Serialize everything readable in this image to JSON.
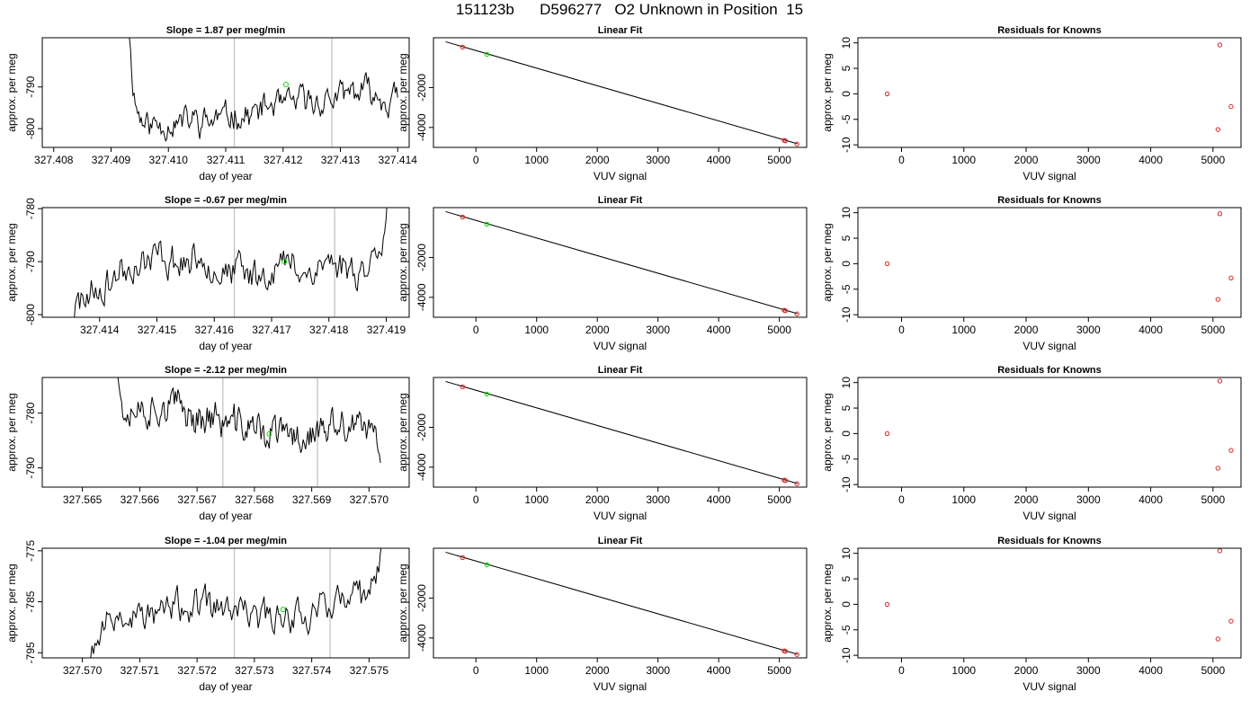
{
  "title": "151123b      D596277   O2 Unknown in Position  15",
  "colors": {
    "trace": "#000000",
    "known_point": "#d62728",
    "unknown_point": "#00e000",
    "marker_line": "#bfbfbf"
  },
  "chart_data": [
    {
      "type": "line",
      "title": "Slope =  1.87  per meg/min",
      "xlabel": "day of year",
      "ylabel": "approx. per meg",
      "xlim": [
        327.4078,
        327.4142
      ],
      "ylim": [
        -804.5,
        -778.2
      ],
      "xticks": [
        "327.408",
        "327.409",
        "327.410",
        "327.411",
        "327.412",
        "327.413",
        "327.414"
      ],
      "yticks": [
        -790,
        -800
      ],
      "markers": [
        327.41115,
        327.41285
      ],
      "unknown_point": {
        "x": 327.41205,
        "y": -789.4
      },
      "trace": {
        "x_start": 327.4093,
        "x_end": 327.414,
        "base": -795,
        "trend": 8,
        "rise_start": 0,
        "rise_end": 0,
        "seed": 11
      }
    },
    {
      "type": "scatter",
      "title": "Linear Fit",
      "xlabel": "VUV signal",
      "ylabel": "approx. per meg",
      "xlim": [
        -700,
        5450
      ],
      "ylim": [
        -5000,
        500
      ],
      "xticks": [
        0,
        1000,
        2000,
        3000,
        4000,
        5000
      ],
      "yticks": [
        -2000,
        -4000
      ],
      "fit_line": {
        "x": [
          -500,
          5300
        ],
        "y": [
          300,
          -4820
        ]
      },
      "knowns": [
        {
          "x": -220,
          "y": 30
        },
        {
          "x": 5080,
          "y": -4650
        },
        {
          "x": 5100,
          "y": -4670
        },
        {
          "x": 5290,
          "y": -4830
        }
      ],
      "unknown": {
        "x": 180,
        "y": -330
      }
    },
    {
      "type": "scatter",
      "title": "Residuals for Knowns",
      "xlabel": "VUV signal",
      "ylabel": "approx. per meg",
      "xlim": [
        -700,
        5450
      ],
      "ylim": [
        -10.5,
        11
      ],
      "xticks": [
        0,
        1000,
        2000,
        3000,
        4000,
        5000
      ],
      "yticks": [
        10,
        5,
        0,
        -5,
        -10
      ],
      "points": [
        {
          "x": -230,
          "y": 0
        },
        {
          "x": 5110,
          "y": 9.6
        },
        {
          "x": 5080,
          "y": -7
        },
        {
          "x": 5290,
          "y": -2.5
        }
      ]
    },
    {
      "type": "line",
      "title": "Slope =  -0.67  per meg/min",
      "xlabel": "day of year",
      "ylabel": "approx. per meg",
      "xlim": [
        327.413,
        327.4194
      ],
      "ylim": [
        -800.5,
        -779.8
      ],
      "xticks": [
        "327.414",
        "327.415",
        "327.416",
        "327.417",
        "327.418",
        "327.419"
      ],
      "yticks": [
        -780,
        -790,
        -800
      ],
      "markers": [
        327.41635,
        327.4181
      ],
      "unknown_point": {
        "x": 327.41722,
        "y": -790
      },
      "trace": {
        "x_start": 327.4133,
        "x_end": 327.4191,
        "base": -791,
        "trend": 1,
        "rise_start": 7,
        "rise_end": 12,
        "seed": 23
      }
    },
    {
      "type": "scatter",
      "title": "Linear Fit",
      "xlabel": "VUV signal",
      "ylabel": "approx. per meg",
      "xlim": [
        -700,
        5450
      ],
      "ylim": [
        -5000,
        500
      ],
      "xticks": [
        0,
        1000,
        2000,
        3000,
        4000,
        5000
      ],
      "yticks": [
        -2000,
        -4000
      ],
      "fit_line": {
        "x": [
          -500,
          5300
        ],
        "y": [
          300,
          -4820
        ]
      },
      "knowns": [
        {
          "x": -220,
          "y": 30
        },
        {
          "x": 5080,
          "y": -4650
        },
        {
          "x": 5100,
          "y": -4670
        },
        {
          "x": 5290,
          "y": -4830
        }
      ],
      "unknown": {
        "x": 180,
        "y": -330
      }
    },
    {
      "type": "scatter",
      "title": "Residuals for Knowns",
      "xlabel": "VUV signal",
      "ylabel": "approx. per meg",
      "xlim": [
        -700,
        5450
      ],
      "ylim": [
        -10.5,
        11
      ],
      "xticks": [
        0,
        1000,
        2000,
        3000,
        4000,
        5000
      ],
      "yticks": [
        10,
        5,
        0,
        -5,
        -10
      ],
      "points": [
        {
          "x": -230,
          "y": 0
        },
        {
          "x": 5110,
          "y": 9.8
        },
        {
          "x": 5080,
          "y": -7
        },
        {
          "x": 5290,
          "y": -2.8
        }
      ]
    },
    {
      "type": "line",
      "title": "Slope =  -2.12  per meg/min",
      "xlabel": "day of year",
      "ylabel": "approx. per meg",
      "xlim": [
        327.5643,
        327.5707
      ],
      "ylim": [
        -793.5,
        -773.5
      ],
      "xticks": [
        "327.565",
        "327.566",
        "327.567",
        "327.568",
        "327.569",
        "327.570"
      ],
      "yticks": [
        -780,
        -790
      ],
      "markers": [
        327.56745,
        327.5691
      ],
      "unknown_point": {
        "x": 327.56826,
        "y": -783.8
      },
      "trace": {
        "x_start": 327.5655,
        "x_end": 327.5702,
        "base": -782.5,
        "trend": -6,
        "rise_start": 0,
        "rise_end": 0,
        "seed": 37
      }
    },
    {
      "type": "scatter",
      "title": "Linear Fit",
      "xlabel": "VUV signal",
      "ylabel": "approx. per meg",
      "xlim": [
        -700,
        5450
      ],
      "ylim": [
        -5000,
        500
      ],
      "xticks": [
        0,
        1000,
        2000,
        3000,
        4000,
        5000
      ],
      "yticks": [
        -2000,
        -4000
      ],
      "fit_line": {
        "x": [
          -500,
          5300
        ],
        "y": [
          300,
          -4820
        ]
      },
      "knowns": [
        {
          "x": -220,
          "y": 30
        },
        {
          "x": 5080,
          "y": -4650
        },
        {
          "x": 5100,
          "y": -4670
        },
        {
          "x": 5290,
          "y": -4830
        }
      ],
      "unknown": {
        "x": 180,
        "y": -330
      }
    },
    {
      "type": "scatter",
      "title": "Residuals for Knowns",
      "xlabel": "VUV signal",
      "ylabel": "approx. per meg",
      "xlim": [
        -700,
        5450
      ],
      "ylim": [
        -10.5,
        11
      ],
      "xticks": [
        0,
        1000,
        2000,
        3000,
        4000,
        5000
      ],
      "yticks": [
        10,
        5,
        0,
        -5,
        -10
      ],
      "points": [
        {
          "x": -230,
          "y": 0
        },
        {
          "x": 5110,
          "y": 10.3
        },
        {
          "x": 5080,
          "y": -6.8
        },
        {
          "x": 5290,
          "y": -3.3
        }
      ]
    },
    {
      "type": "line",
      "title": "Slope =  -1.04  per meg/min",
      "xlabel": "day of year",
      "ylabel": "approx. per meg",
      "xlim": [
        327.5693,
        327.5757
      ],
      "ylim": [
        -796,
        -774.5
      ],
      "xticks": [
        "327.570",
        "327.571",
        "327.572",
        "327.573",
        "327.574",
        "327.575"
      ],
      "yticks": [
        -775,
        -785,
        -795
      ],
      "markers": [
        327.57265,
        327.57432
      ],
      "unknown_point": {
        "x": 327.5735,
        "y": -786.5
      },
      "trace": {
        "x_start": 327.5695,
        "x_end": 327.5754,
        "base": -786.5,
        "trend": 1,
        "rise_start": 9,
        "rise_end": 14,
        "seed": 53
      }
    },
    {
      "type": "scatter",
      "title": "Linear Fit",
      "xlabel": "VUV signal",
      "ylabel": "approx. per meg",
      "xlim": [
        -700,
        5450
      ],
      "ylim": [
        -5000,
        500
      ],
      "xticks": [
        0,
        1000,
        2000,
        3000,
        4000,
        5000
      ],
      "yticks": [
        -2000,
        -4000
      ],
      "fit_line": {
        "x": [
          -500,
          5300
        ],
        "y": [
          300,
          -4820
        ]
      },
      "knowns": [
        {
          "x": -220,
          "y": 30
        },
        {
          "x": 5080,
          "y": -4650
        },
        {
          "x": 5100,
          "y": -4670
        },
        {
          "x": 5290,
          "y": -4830
        }
      ],
      "unknown": {
        "x": 180,
        "y": -330
      }
    },
    {
      "type": "scatter",
      "title": "Residuals for Knowns",
      "xlabel": "VUV signal",
      "ylabel": "approx. per meg",
      "xlim": [
        -700,
        5450
      ],
      "ylim": [
        -10.5,
        11
      ],
      "xticks": [
        0,
        1000,
        2000,
        3000,
        4000,
        5000
      ],
      "yticks": [
        10,
        5,
        0,
        -5,
        -10
      ],
      "points": [
        {
          "x": -230,
          "y": 0
        },
        {
          "x": 5110,
          "y": 10.5
        },
        {
          "x": 5080,
          "y": -6.8
        },
        {
          "x": 5290,
          "y": -3.3
        }
      ]
    }
  ]
}
